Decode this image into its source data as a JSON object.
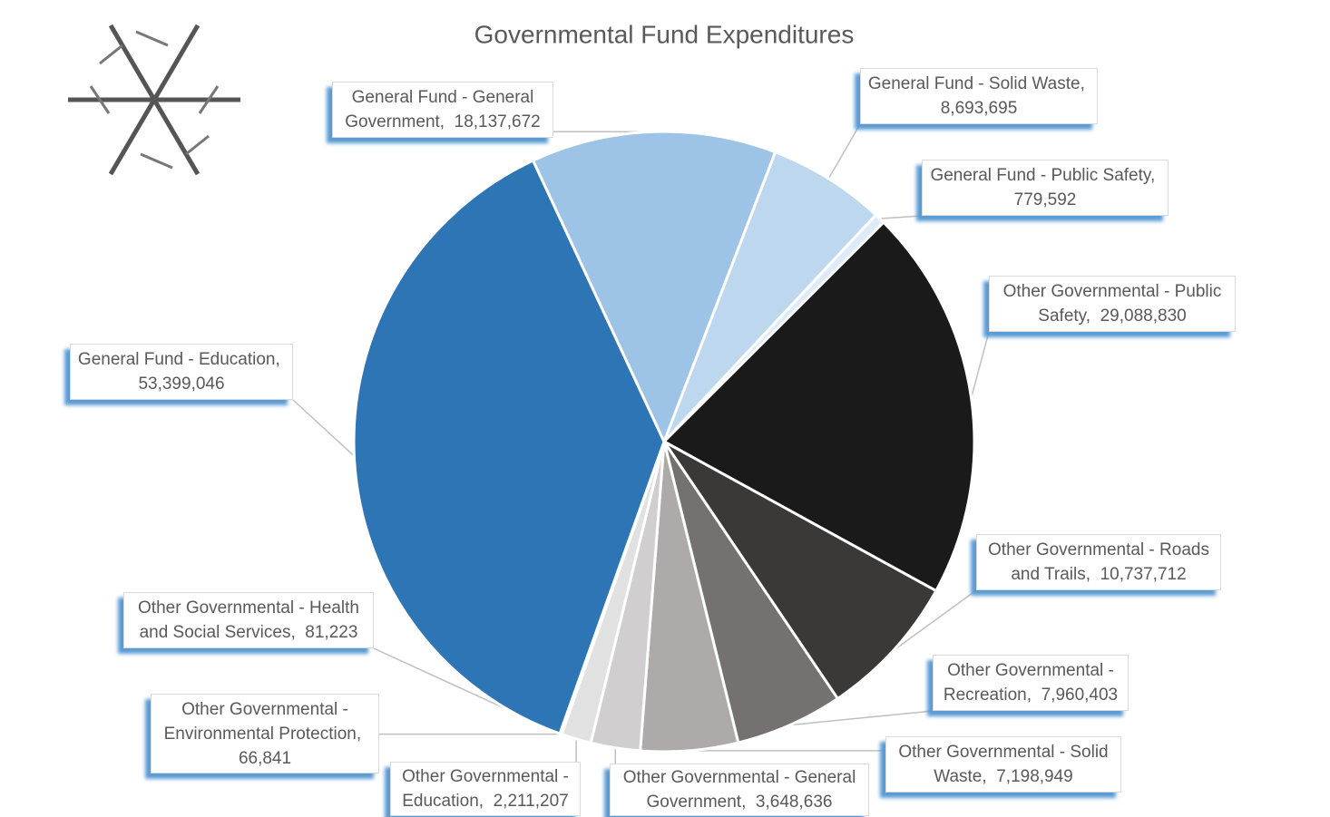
{
  "chart_data": {
    "type": "pie",
    "title": "Governmental Fund Expenditures",
    "categories": [
      "General Fund - Solid Waste",
      "General Fund - Public Safety",
      "Other Governmental - Public Safety",
      "Other Governmental - Roads and Trails",
      "Other Governmental - Recreation",
      "Other Governmental - Solid Waste",
      "Other Governmental - General Government",
      "Other Governmental - Education",
      "Other Governmental - Environmental Protection",
      "Other Governmental - Health and Social Services",
      "General Fund - Education",
      "General Fund - General Government"
    ],
    "values": [
      8693695,
      779592,
      29088830,
      10737712,
      7960403,
      7198949,
      3648636,
      2211207,
      66841,
      81223,
      53399046,
      18137672
    ],
    "value_labels": [
      "8,693,695",
      "779,592",
      "29,088,830",
      "10,737,712",
      "7,960,403",
      "7,198,949",
      "3,648,636",
      "2,211,207",
      "66,841",
      "81,223",
      "53,399,046",
      "18,137,672"
    ],
    "colors": [
      "#bdd7ee",
      "#deebf7",
      "#1a1a1a",
      "#3b3838",
      "#767171",
      "#aeaaaa",
      "#d0cece",
      "#e1e1e1",
      "#ededed",
      "#f2f2f2",
      "#2e75b6",
      "#9dc3e6"
    ]
  }
}
